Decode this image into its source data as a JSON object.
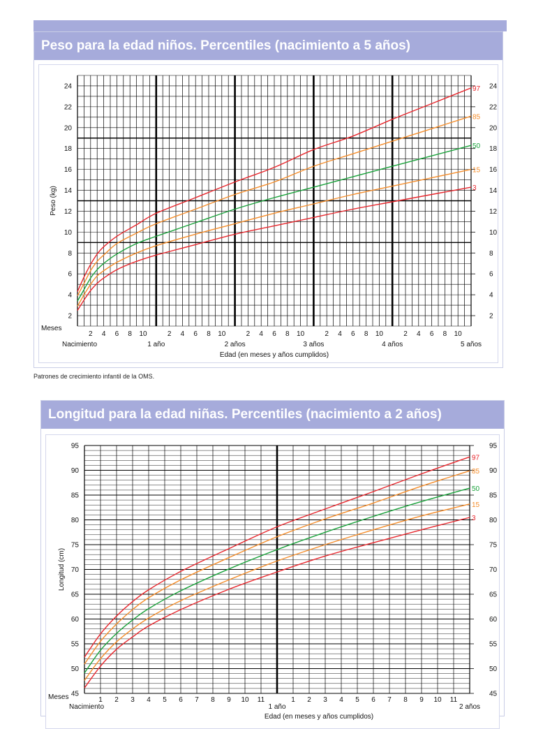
{
  "chart_data": [
    {
      "type": "line",
      "title": "Peso para la edad niños. Percentiles (nacimiento a 5 años)",
      "ylabel": "Peso (kg)",
      "xlabel": "Edad (en meses y años cumplidos)",
      "xlim": [
        0,
        60
      ],
      "ylim": [
        1,
        25
      ],
      "y_ticks": [
        2,
        4,
        6,
        8,
        10,
        12,
        14,
        16,
        18,
        20,
        22,
        24
      ],
      "month_label": "Meses",
      "month_ticks": [
        "2",
        "4",
        "6",
        "8",
        "10"
      ],
      "year_labels": [
        "Nacimiento",
        "1 año",
        "2 años",
        "3 años",
        "4 años",
        "5 años"
      ],
      "grid": true,
      "x": [
        0,
        1,
        2,
        3,
        4,
        6,
        9,
        12,
        18,
        24,
        30,
        36,
        42,
        48,
        54,
        60
      ],
      "series": [
        {
          "name": "97",
          "color": "#e8262c",
          "values": [
            4.3,
            5.7,
            6.9,
            7.9,
            8.6,
            9.6,
            10.7,
            11.8,
            13.3,
            14.8,
            16.2,
            17.9,
            19.2,
            20.8,
            22.3,
            23.8
          ]
        },
        {
          "name": "85",
          "color": "#f58d2a",
          "values": [
            3.9,
            5.1,
            6.3,
            7.2,
            7.8,
            8.9,
            9.9,
            10.8,
            12.2,
            13.6,
            14.8,
            16.3,
            17.5,
            18.7,
            19.9,
            21.1
          ]
        },
        {
          "name": "50",
          "color": "#19a23a",
          "values": [
            3.4,
            4.5,
            5.6,
            6.4,
            7.0,
            7.9,
            8.9,
            9.6,
            10.9,
            12.2,
            13.3,
            14.3,
            15.3,
            16.3,
            17.3,
            18.3
          ]
        },
        {
          "name": "15",
          "color": "#f58d2a",
          "values": [
            2.9,
            4.0,
            5.0,
            5.8,
            6.3,
            7.1,
            8.0,
            8.7,
            9.8,
            10.8,
            11.8,
            12.7,
            13.6,
            14.4,
            15.2,
            16.0
          ]
        },
        {
          "name": "3",
          "color": "#e8262c",
          "values": [
            2.5,
            3.5,
            4.4,
            5.1,
            5.6,
            6.4,
            7.2,
            7.8,
            8.8,
            9.8,
            10.6,
            11.4,
            12.2,
            12.9,
            13.6,
            14.3
          ]
        }
      ]
    },
    {
      "type": "line",
      "title": "Longitud para la edad niñas. Percentiles (nacimiento a 2 años)",
      "ylabel": "Longitud (cm)",
      "xlabel": "Edad (en meses y años cumplidos)",
      "xlim": [
        0,
        24
      ],
      "ylim": [
        45,
        95
      ],
      "y_ticks": [
        45,
        50,
        55,
        60,
        65,
        70,
        75,
        80,
        85,
        90,
        95
      ],
      "month_label": "Meses",
      "month_ticks": [
        "1",
        "2",
        "3",
        "4",
        "5",
        "6",
        "7",
        "8",
        "9",
        "10",
        "11"
      ],
      "year_labels": [
        "Nacimiento",
        "1 año",
        "2 años"
      ],
      "grid": true,
      "x": [
        0,
        1,
        2,
        3,
        4,
        6,
        9,
        12,
        15,
        18,
        21,
        24
      ],
      "series": [
        {
          "name": "97",
          "color": "#e8262c",
          "values": [
            52.3,
            57.0,
            60.6,
            63.5,
            65.9,
            69.6,
            74.2,
            78.6,
            82.2,
            85.7,
            89.3,
            92.7
          ]
        },
        {
          "name": "85",
          "color": "#f58d2a",
          "values": [
            50.9,
            55.5,
            59.0,
            61.9,
            64.3,
            67.9,
            72.4,
            76.6,
            80.2,
            83.4,
            86.8,
            89.9
          ]
        },
        {
          "name": "50",
          "color": "#19a23a",
          "values": [
            49.1,
            53.7,
            57.1,
            59.8,
            62.1,
            65.7,
            70.1,
            74.0,
            77.5,
            80.7,
            83.7,
            86.4
          ]
        },
        {
          "name": "15",
          "color": "#f58d2a",
          "values": [
            47.6,
            52.0,
            55.4,
            58.0,
            60.2,
            63.7,
            67.9,
            71.7,
            75.0,
            78.0,
            80.8,
            83.2
          ]
        },
        {
          "name": "3",
          "color": "#e8262c",
          "values": [
            46.1,
            50.5,
            53.9,
            56.4,
            58.6,
            61.9,
            66.0,
            69.5,
            72.7,
            75.4,
            78.0,
            80.5
          ]
        }
      ]
    }
  ],
  "footnote": "Patrones de crecimiento infantil de la OMS."
}
